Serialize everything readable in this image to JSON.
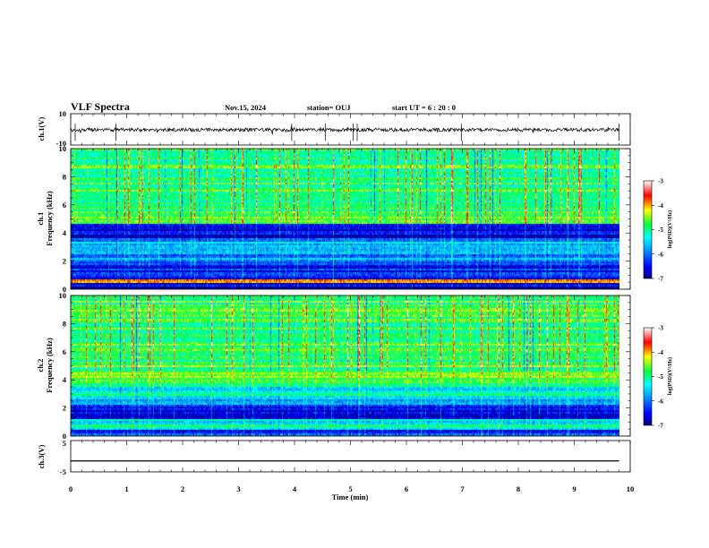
{
  "header": {
    "title": "VLF Spectra",
    "date": "Nov.15, 2024",
    "station": "station= OUJ",
    "start_ut": "start  UT  =   6  : 20 : 0"
  },
  "chart_data": [
    {
      "type": "line",
      "panel": "ch1-waveform",
      "ylabel": "ch.1(V)",
      "ylim": [
        -10,
        10
      ],
      "y_tick_labels": [
        "10",
        "-10"
      ],
      "xlim": [
        0,
        10
      ],
      "series": [
        {
          "description_level": -0.3,
          "spikes_min": [
            0.08,
            0.81,
            3.95,
            4.55,
            5.05,
            5.12,
            6.98,
            9.8
          ]
        }
      ]
    },
    {
      "type": "heatmap",
      "panel": "ch1-spectrogram",
      "ylabel": "Frequency  (kHz)",
      "ylabel_channel": "ch.1",
      "ylim": [
        0,
        10
      ],
      "y_tick_labels": [
        "0",
        "2",
        "4",
        "6",
        "8",
        "10"
      ],
      "xlim": [
        0,
        10
      ],
      "colorbar": {
        "label": "log(PSD)(V²/Hz)",
        "ticks": [
          "-3",
          "-4",
          "-5",
          "-6",
          "-7"
        ],
        "range": [
          -7,
          -3
        ]
      },
      "bands_khz": [
        {
          "from": 0.0,
          "to": 0.4,
          "level": -6.7
        },
        {
          "from": 0.4,
          "to": 0.7,
          "level": -4.2
        },
        {
          "from": 0.7,
          "to": 1.2,
          "level": -6.6
        },
        {
          "from": 1.2,
          "to": 2.0,
          "level": -6.3
        },
        {
          "from": 2.0,
          "to": 2.6,
          "level": -5.9
        },
        {
          "from": 2.6,
          "to": 3.4,
          "level": -5.6
        },
        {
          "from": 3.4,
          "to": 4.6,
          "level": -6.4
        },
        {
          "from": 4.6,
          "to": 10.0,
          "level": -4.9
        }
      ]
    },
    {
      "type": "heatmap",
      "panel": "ch2-spectrogram",
      "ylabel": "Frequency  (kHz)",
      "ylabel_channel": "ch.2",
      "ylim": [
        0,
        10
      ],
      "y_tick_labels": [
        "0",
        "2",
        "4",
        "6",
        "8",
        "10"
      ],
      "xlim": [
        0,
        10
      ],
      "colorbar": {
        "label": "log(PSD)(V²/Hz)",
        "ticks": [
          "-3",
          "-4",
          "-5",
          "-6",
          "-7"
        ],
        "range": [
          -7,
          -3
        ]
      },
      "bands_khz": [
        {
          "from": 0.0,
          "to": 0.5,
          "level": -6.3
        },
        {
          "from": 0.5,
          "to": 1.2,
          "level": -5.3
        },
        {
          "from": 1.2,
          "to": 2.2,
          "level": -6.5
        },
        {
          "from": 2.2,
          "to": 2.8,
          "level": -5.8
        },
        {
          "from": 2.8,
          "to": 3.6,
          "level": -5.3
        },
        {
          "from": 3.6,
          "to": 10.0,
          "level": -4.8
        }
      ]
    },
    {
      "type": "line",
      "panel": "ch3-waveform",
      "ylabel": "ch.3(V)",
      "ylim": [
        -5,
        5
      ],
      "y_tick_labels": [
        "5",
        "-5"
      ],
      "xlim": [
        0,
        10
      ],
      "xlabel": "Time  (min)",
      "x_tick_labels": [
        "0",
        "1",
        "2",
        "3",
        "4",
        "5",
        "6",
        "7",
        "8",
        "9",
        "10"
      ],
      "series": [
        {
          "constant": -1.5
        }
      ]
    }
  ],
  "colors": {
    "axis": "#000000",
    "waveform": "#000000",
    "background": "#ffffff"
  }
}
